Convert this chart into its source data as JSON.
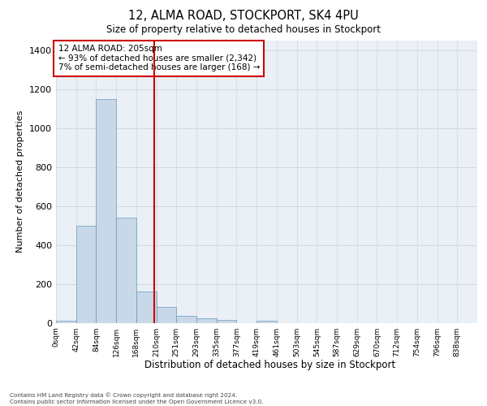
{
  "title": "12, ALMA ROAD, STOCKPORT, SK4 4PU",
  "subtitle": "Size of property relative to detached houses in Stockport",
  "xlabel": "Distribution of detached houses by size in Stockport",
  "ylabel": "Number of detached properties",
  "bin_labels": [
    "0sqm",
    "42sqm",
    "84sqm",
    "126sqm",
    "168sqm",
    "210sqm",
    "251sqm",
    "293sqm",
    "335sqm",
    "377sqm",
    "419sqm",
    "461sqm",
    "503sqm",
    "545sqm",
    "587sqm",
    "629sqm",
    "670sqm",
    "712sqm",
    "754sqm",
    "796sqm",
    "838sqm"
  ],
  "bar_heights": [
    10,
    500,
    1150,
    540,
    160,
    80,
    35,
    25,
    15,
    0,
    12,
    0,
    0,
    0,
    0,
    0,
    0,
    0,
    0,
    0,
    0
  ],
  "bar_color": "#c8d8e8",
  "bar_edgecolor": "#6699bb",
  "grid_color": "#d0d8e0",
  "vline_color": "#cc0000",
  "annotation_text": "12 ALMA ROAD: 205sqm\n← 93% of detached houses are smaller (2,342)\n7% of semi-detached houses are larger (168) →",
  "annotation_box_color": "#cc0000",
  "ylim": [
    0,
    1450
  ],
  "yticks": [
    0,
    200,
    400,
    600,
    800,
    1000,
    1200,
    1400
  ],
  "footer_text": "Contains HM Land Registry data © Crown copyright and database right 2024.\nContains public sector information licensed under the Open Government Licence v3.0.",
  "background_color": "#eaf0f6"
}
